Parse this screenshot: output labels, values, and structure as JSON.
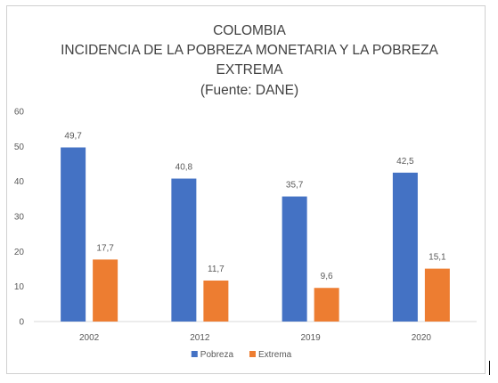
{
  "chart_data": {
    "type": "bar",
    "title_lines": [
      "COLOMBIA",
      "INCIDENCIA DE LA POBREZA MONETARIA Y LA POBREZA",
      "EXTREMA",
      "(Fuente: DANE)"
    ],
    "categories": [
      "2002",
      "2012",
      "2019",
      "2020"
    ],
    "series": [
      {
        "name": "Pobreza",
        "values": [
          49.7,
          40.8,
          35.7,
          42.5
        ],
        "labels": [
          "49,7",
          "40,8",
          "35,7",
          "42,5"
        ],
        "color": "#4472c4"
      },
      {
        "name": "Extrema",
        "values": [
          17.7,
          11.7,
          9.6,
          15.1
        ],
        "labels": [
          "17,7",
          "11,7",
          "9,6",
          "15,1"
        ],
        "color": "#ed7d31"
      }
    ],
    "ylim": [
      0,
      60
    ],
    "yticks": [
      0,
      10,
      20,
      30,
      40,
      50,
      60
    ],
    "grid": false,
    "legend_position": "bottom"
  }
}
